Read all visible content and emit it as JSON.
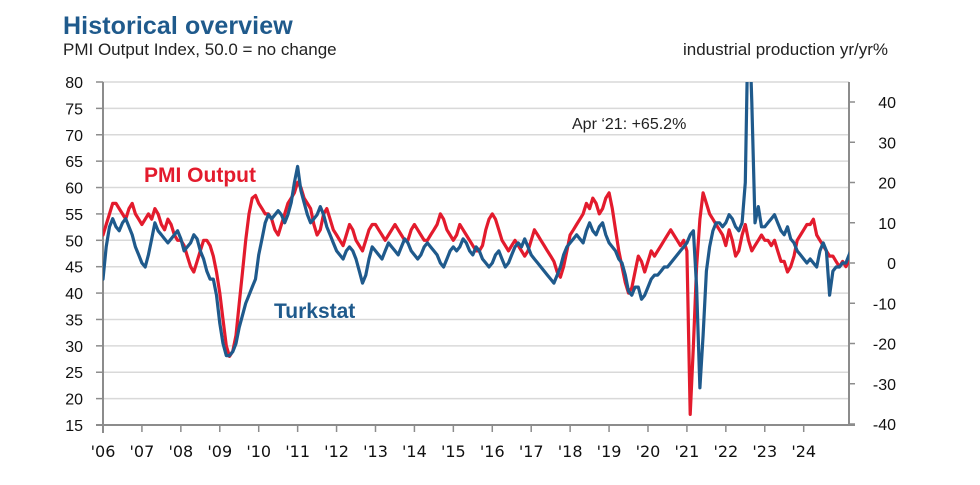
{
  "header": {
    "title": "Historical overview",
    "subtitle": "PMI Output Index, 50.0 = no change",
    "right_axis_title": "industrial production yr/yr%"
  },
  "chart_data": {
    "type": "line",
    "title": "Historical overview",
    "subtitle": "PMI Output Index, 50.0 = no change",
    "xlabel": "",
    "ylabel": "PMI Output Index, 50.0 = no change",
    "y2label": "industrial production yr/yr%",
    "ylim": [
      15,
      80
    ],
    "y2lim": [
      -40,
      45
    ],
    "yticks": [
      "80",
      "75",
      "70",
      "65",
      "60",
      "55",
      "50",
      "45",
      "40",
      "35",
      "30",
      "25",
      "20",
      "15"
    ],
    "y2ticks": [
      "40",
      "30",
      "20",
      "10",
      "0",
      "-10",
      "-20",
      "-30",
      "-40"
    ],
    "xticks": [
      "'06",
      "'07",
      "'08",
      "'09",
      "'10",
      "'11",
      "'12",
      "'13",
      "'14",
      "'15",
      "'16",
      "'17",
      "'18",
      "'19",
      "'20",
      "'21",
      "'22",
      "'23",
      "'24"
    ],
    "x_start": "2006-01",
    "frequency": "monthly",
    "grid": true,
    "annotation": "Apr ‘21: +65.2%",
    "series": [
      {
        "name": "PMI Output",
        "axis": "left",
        "color": "#e31b2d",
        "values": [
          51,
          53,
          55,
          57,
          57,
          56,
          55,
          54,
          56,
          57,
          55,
          54,
          53,
          54,
          55,
          54,
          56,
          55,
          53,
          52,
          54,
          53,
          51,
          50,
          50,
          49,
          47,
          45,
          44,
          46,
          48,
          50,
          50,
          49,
          47,
          44,
          40,
          35,
          30,
          28,
          29,
          32,
          38,
          44,
          50,
          55,
          58,
          58.5,
          57,
          56,
          55,
          55,
          54,
          52,
          51,
          53,
          55,
          57,
          58,
          59,
          61,
          60,
          58,
          57,
          56,
          53,
          51,
          52,
          55,
          56,
          54,
          52,
          51,
          50,
          49,
          51,
          53,
          52,
          50,
          49,
          48,
          50,
          52,
          53,
          53,
          52,
          51,
          50,
          51,
          52,
          53,
          52,
          51,
          50,
          50,
          52,
          53,
          52,
          51,
          50,
          50,
          51,
          52,
          53,
          55,
          54,
          52,
          51,
          50,
          51,
          53,
          52,
          51,
          50,
          49,
          48,
          48,
          49,
          52,
          54,
          55,
          54,
          52,
          50,
          49,
          48,
          49,
          50,
          49,
          48,
          47,
          48,
          50,
          52,
          51,
          50,
          49,
          48,
          47,
          46,
          44,
          43,
          45,
          48,
          51,
          52,
          53,
          54,
          55,
          57,
          56,
          58,
          57,
          55,
          56,
          58,
          59,
          56,
          52,
          48,
          45,
          42,
          40,
          41,
          44,
          47,
          46,
          44,
          46,
          48,
          47,
          48,
          49,
          50,
          51,
          52,
          51,
          50,
          49,
          50,
          48,
          17,
          30,
          45,
          54,
          59,
          57,
          55,
          54,
          53,
          52,
          51,
          49,
          52,
          50,
          47,
          48,
          51,
          53,
          50,
          48,
          49,
          50,
          51,
          50,
          50,
          49,
          50,
          48,
          46,
          46,
          44,
          45,
          47,
          50,
          51,
          52,
          53,
          53,
          54,
          51,
          50,
          49,
          48,
          47,
          47,
          46,
          45,
          46,
          45,
          46,
          47,
          47,
          48,
          49,
          52,
          53,
          51,
          49,
          48,
          47,
          47,
          46,
          45,
          43
        ],
        "note": "approximate monthly values read from chart"
      },
      {
        "name": "Turkstat",
        "axis": "right",
        "color": "#1f5a8c",
        "values": [
          -4,
          4,
          9,
          11,
          9,
          8,
          10,
          11,
          9,
          7,
          4,
          2,
          0,
          -1,
          2,
          6,
          10,
          8,
          7,
          6,
          5,
          6,
          7,
          8,
          6,
          3,
          4,
          5,
          7,
          6,
          3,
          1,
          -2,
          -4,
          -4,
          -8,
          -15,
          -20,
          -23,
          -23,
          -22,
          -20,
          -16,
          -13,
          -10,
          -8,
          -6,
          -4,
          2,
          6,
          10,
          12,
          11,
          12,
          13,
          12,
          10,
          12,
          15,
          20,
          24,
          18,
          15,
          12,
          10,
          11,
          12,
          14,
          12,
          9,
          7,
          5,
          3,
          2,
          1,
          3,
          4,
          3,
          1,
          -2,
          -5,
          -3,
          1,
          4,
          3,
          2,
          1,
          3,
          5,
          4,
          3,
          2,
          4,
          6,
          5,
          3,
          2,
          1,
          2,
          4,
          5,
          4,
          3,
          2,
          0,
          -1,
          1,
          3,
          4,
          3,
          4,
          6,
          5,
          3,
          2,
          4,
          3,
          1,
          0,
          -1,
          0,
          2,
          3,
          1,
          -1,
          0,
          2,
          4,
          5,
          4,
          6,
          4,
          2,
          1,
          0,
          -1,
          -2,
          -3,
          -4,
          -5,
          -3,
          -1,
          2,
          4,
          5,
          6,
          7,
          6,
          5,
          8,
          10,
          8,
          7,
          9,
          10,
          7,
          5,
          4,
          3,
          1,
          0,
          -3,
          -7,
          -8,
          -6,
          -6,
          -9,
          -8,
          -6,
          -4,
          -3,
          -3,
          -2,
          -1,
          -1,
          0,
          1,
          2,
          3,
          4,
          5,
          7,
          8,
          -6,
          -31,
          -18,
          -2,
          4,
          8,
          10,
          10,
          9,
          10,
          12,
          11,
          9,
          8,
          10,
          20,
          65.2,
          40,
          10,
          14,
          9,
          9,
          10,
          11,
          12,
          10,
          8,
          7,
          9,
          6,
          5,
          3,
          2,
          1,
          0,
          1,
          0,
          -1,
          3,
          5,
          3,
          -8,
          -2,
          -1,
          -1,
          0,
          0,
          2,
          4,
          4,
          2,
          10,
          12,
          6,
          3,
          1,
          -2,
          -3,
          -5,
          -5,
          -4
        ],
        "note": "approximate monthly values read from chart; Apr 2021 peak annotated at +65.2%, clipped at top of axis"
      }
    ],
    "labels": [
      {
        "text": "PMI Output",
        "series": "PMI Output"
      },
      {
        "text": "Turkstat",
        "series": "Turkstat"
      }
    ]
  }
}
